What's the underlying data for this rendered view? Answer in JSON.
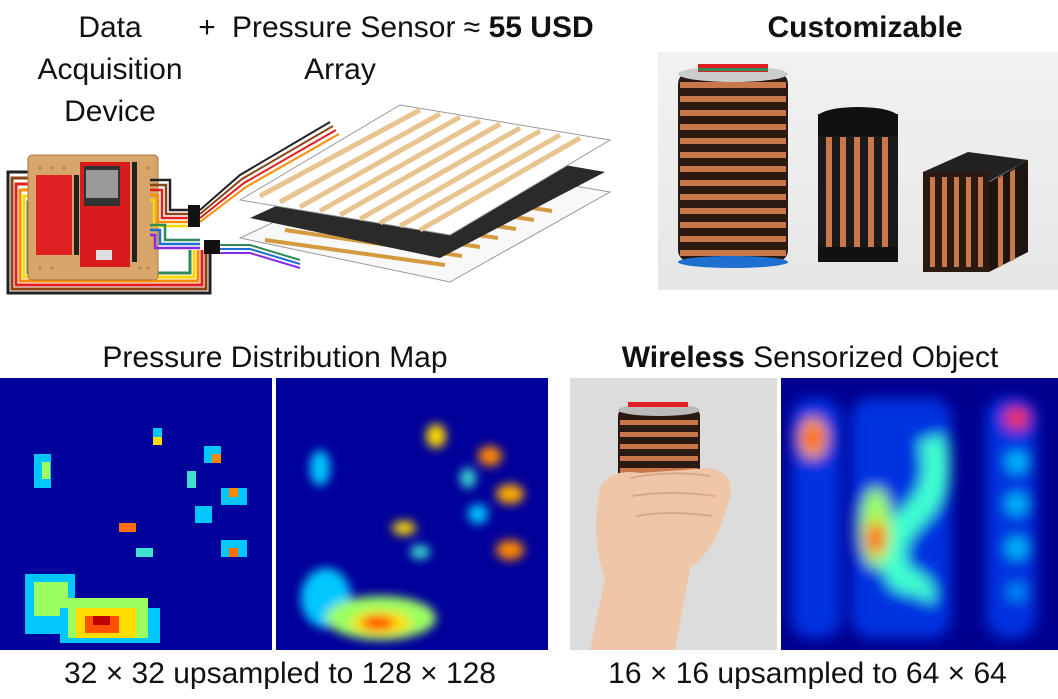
{
  "header": {
    "daq_label_lines": [
      "Data",
      "Acquisition",
      "Device"
    ],
    "plus": "+",
    "sensor_label_lines": [
      "Pressure Sensor",
      "Array"
    ],
    "approx_symbol": "≈",
    "price": "55 USD",
    "customizable": "Customizable"
  },
  "section_left": {
    "title": "Pressure Distribution Map",
    "caption": "32 × 32 upsampled to 128 × 128"
  },
  "section_right": {
    "title_bold": "Wireless",
    "title_rest": "Sensorized Object",
    "caption": "16 × 16 upsampled to 64 × 64"
  },
  "colors": {
    "heatmap_background": "#00008f",
    "heatmap_mid": "#00aaff",
    "heatmap_hot": "#ff2000",
    "copper": "#c8784a",
    "board_red": "#e02020"
  }
}
